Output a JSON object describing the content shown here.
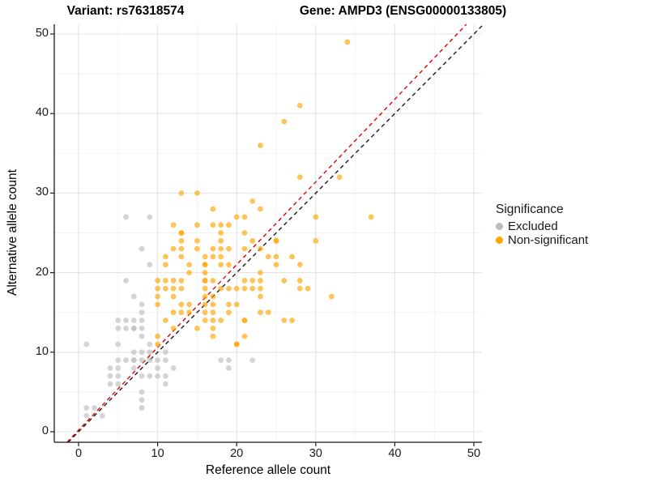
{
  "header": {
    "left_title": "Variant: rs76318574",
    "right_title": "Gene: AMPD3 (ENSG00000133805)"
  },
  "chart_data": {
    "type": "scatter",
    "title_left": "Variant: rs76318574",
    "title_right": "Gene: AMPD3 (ENSG00000133805)",
    "xlabel": "Reference allele count",
    "ylabel": "Alternative allele count",
    "xlim": [
      -3.1,
      51.0
    ],
    "ylim": [
      -1.3,
      51.2
    ],
    "xticks": [
      0,
      10,
      20,
      30,
      40,
      50
    ],
    "yticks": [
      0,
      10,
      20,
      30,
      40,
      50
    ],
    "grid": {
      "major_every": 10,
      "minor_every": 5,
      "major_color": "#e4e4e4",
      "minor_color": "#f2f2f2"
    },
    "legend": {
      "title": "Significance",
      "position": "right",
      "entries": [
        {
          "label": "Excluded",
          "color": "#bdbdbd"
        },
        {
          "label": "Non-significant",
          "color": "#ffa500"
        }
      ]
    },
    "reference_lines": [
      {
        "name": "identity-line",
        "slope": 1.0,
        "intercept": 0.0,
        "color": "#1a1a1a",
        "style": "dashed"
      },
      {
        "name": "expected-ratio-line",
        "slope": 1.04,
        "intercept": 0.2,
        "color": "#e00000",
        "style": "dashed"
      }
    ],
    "point_style": {
      "radius": 3.4,
      "opacity": 0.65
    },
    "series": [
      {
        "name": "Excluded",
        "color": "#bdbdbd",
        "points": [
          [
            1,
            2
          ],
          [
            1,
            3
          ],
          [
            2,
            3
          ],
          [
            3,
            2
          ],
          [
            1,
            11
          ],
          [
            5,
            11
          ],
          [
            9,
            11
          ],
          [
            4,
            6
          ],
          [
            5,
            6
          ],
          [
            11,
            6
          ],
          [
            4,
            7
          ],
          [
            5,
            7
          ],
          [
            8,
            7
          ],
          [
            9,
            7
          ],
          [
            10,
            7
          ],
          [
            11,
            7
          ],
          [
            4,
            8
          ],
          [
            5,
            8
          ],
          [
            7,
            8
          ],
          [
            10,
            8
          ],
          [
            12,
            8
          ],
          [
            5,
            9
          ],
          [
            6,
            9
          ],
          [
            7,
            9
          ],
          [
            7,
            9
          ],
          [
            8,
            9
          ],
          [
            9,
            9
          ],
          [
            10,
            9
          ],
          [
            11,
            9
          ],
          [
            7,
            10
          ],
          [
            8,
            10
          ],
          [
            9,
            10
          ],
          [
            11,
            10
          ],
          [
            8,
            3
          ],
          [
            8,
            4
          ],
          [
            8,
            5
          ],
          [
            8,
            12
          ],
          [
            5,
            13
          ],
          [
            6,
            13
          ],
          [
            7,
            13
          ],
          [
            7,
            13
          ],
          [
            8,
            13
          ],
          [
            5,
            14
          ],
          [
            6,
            14
          ],
          [
            7,
            14
          ],
          [
            8,
            14
          ],
          [
            8,
            15
          ],
          [
            8,
            16
          ],
          [
            7,
            17
          ],
          [
            6,
            19
          ],
          [
            9,
            21
          ],
          [
            6,
            27
          ],
          [
            9,
            27
          ],
          [
            8,
            23
          ],
          [
            18,
            9
          ],
          [
            19,
            9
          ],
          [
            22,
            9
          ],
          [
            19,
            8
          ]
        ]
      },
      {
        "name": "Non-significant",
        "color": "#ffa500",
        "points": [
          [
            10,
            11
          ],
          [
            20,
            11
          ],
          [
            20,
            11
          ],
          [
            10,
            12
          ],
          [
            17,
            12
          ],
          [
            21,
            12
          ],
          [
            12,
            13
          ],
          [
            15,
            13
          ],
          [
            17,
            13
          ],
          [
            11,
            14
          ],
          [
            16,
            14
          ],
          [
            17,
            14
          ],
          [
            18,
            14
          ],
          [
            21,
            14
          ],
          [
            21,
            14
          ],
          [
            26,
            14
          ],
          [
            27,
            14
          ],
          [
            12,
            15
          ],
          [
            13,
            15
          ],
          [
            14,
            15
          ],
          [
            16,
            15
          ],
          [
            17,
            15
          ],
          [
            19,
            15
          ],
          [
            23,
            15
          ],
          [
            24,
            15
          ],
          [
            10,
            16
          ],
          [
            13,
            16
          ],
          [
            14,
            16
          ],
          [
            16,
            16
          ],
          [
            17,
            16
          ],
          [
            19,
            16
          ],
          [
            20,
            16
          ],
          [
            10,
            17
          ],
          [
            12,
            17
          ],
          [
            16,
            17
          ],
          [
            17,
            17
          ],
          [
            23,
            17
          ],
          [
            32,
            17
          ],
          [
            10,
            18
          ],
          [
            11,
            18
          ],
          [
            12,
            18
          ],
          [
            13,
            18
          ],
          [
            16,
            18
          ],
          [
            18,
            18
          ],
          [
            19,
            18
          ],
          [
            20,
            18
          ],
          [
            21,
            18
          ],
          [
            22,
            18
          ],
          [
            23,
            18
          ],
          [
            28,
            18
          ],
          [
            29,
            18
          ],
          [
            10,
            19
          ],
          [
            11,
            19
          ],
          [
            12,
            19
          ],
          [
            13,
            19
          ],
          [
            16,
            19
          ],
          [
            16,
            19
          ],
          [
            17,
            19
          ],
          [
            21,
            19
          ],
          [
            22,
            19
          ],
          [
            23,
            19
          ],
          [
            26,
            19
          ],
          [
            28,
            19
          ],
          [
            14,
            20
          ],
          [
            16,
            20
          ],
          [
            23,
            20
          ],
          [
            11,
            21
          ],
          [
            14,
            21
          ],
          [
            16,
            21
          ],
          [
            16,
            21
          ],
          [
            18,
            21
          ],
          [
            19,
            21
          ],
          [
            25,
            21
          ],
          [
            28,
            21
          ],
          [
            11,
            22
          ],
          [
            13,
            22
          ],
          [
            16,
            22
          ],
          [
            17,
            22
          ],
          [
            18,
            22
          ],
          [
            24,
            22
          ],
          [
            25,
            22
          ],
          [
            27,
            22
          ],
          [
            12,
            23
          ],
          [
            13,
            23
          ],
          [
            15,
            23
          ],
          [
            17,
            23
          ],
          [
            18,
            23
          ],
          [
            19,
            23
          ],
          [
            21,
            23
          ],
          [
            23,
            23
          ],
          [
            13,
            24
          ],
          [
            15,
            24
          ],
          [
            18,
            24
          ],
          [
            22,
            24
          ],
          [
            25,
            24
          ],
          [
            25,
            24
          ],
          [
            30,
            24
          ],
          [
            13,
            25
          ],
          [
            13,
            25
          ],
          [
            18,
            25
          ],
          [
            21,
            25
          ],
          [
            12,
            26
          ],
          [
            15,
            26
          ],
          [
            17,
            26
          ],
          [
            18,
            26
          ],
          [
            19,
            26
          ],
          [
            20,
            27
          ],
          [
            21,
            27
          ],
          [
            30,
            27
          ],
          [
            37,
            27
          ],
          [
            17,
            28
          ],
          [
            23,
            28
          ],
          [
            22,
            29
          ],
          [
            13,
            30
          ],
          [
            15,
            30
          ],
          [
            28,
            32
          ],
          [
            33,
            32
          ],
          [
            23,
            36
          ],
          [
            26,
            39
          ],
          [
            28,
            41
          ],
          [
            34,
            49
          ]
        ]
      }
    ]
  }
}
